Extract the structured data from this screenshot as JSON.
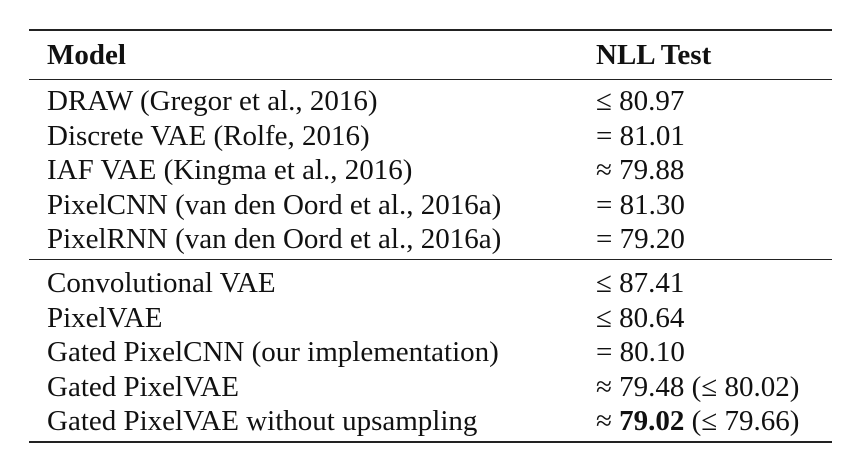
{
  "table": {
    "headers": {
      "model": "Model",
      "nll": "NLL Test"
    },
    "section1": [
      {
        "model": "DRAW (Gregor et al., 2016)",
        "nll": "≤ 80.97"
      },
      {
        "model": "Discrete VAE (Rolfe, 2016)",
        "nll": "= 81.01"
      },
      {
        "model": "IAF VAE (Kingma et al., 2016)",
        "nll": "≈ 79.88"
      },
      {
        "model": "PixelCNN (van den Oord et al., 2016a)",
        "nll": "= 81.30"
      },
      {
        "model": "PixelRNN (van den Oord et al., 2016a)",
        "nll": "= 79.20"
      }
    ],
    "section2": [
      {
        "model": "Convolutional VAE",
        "nll": "≤ 87.41"
      },
      {
        "model": "PixelVAE",
        "nll": "≤ 80.64"
      },
      {
        "model": "Gated PixelCNN (our implementation)",
        "nll": "= 80.10"
      },
      {
        "model": "Gated PixelVAE",
        "nll": "≈ 79.48 (≤ 80.02)"
      },
      {
        "model": "Gated PixelVAE without upsampling",
        "nll_prefix": "≈ ",
        "nll_bold": "79.02",
        "nll_suffix": " (≤ 79.66)"
      }
    ]
  }
}
